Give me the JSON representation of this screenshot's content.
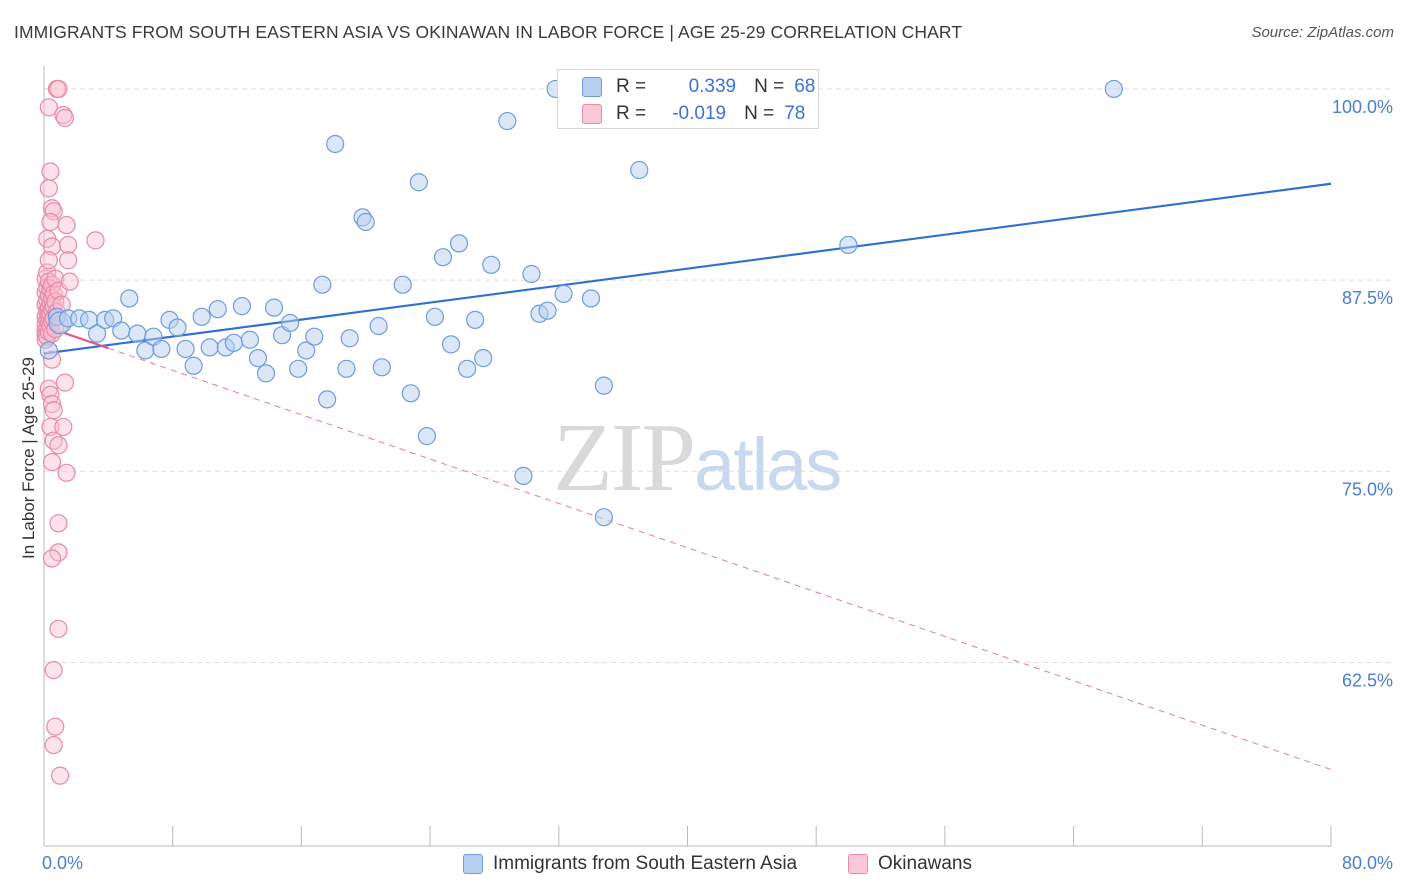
{
  "title": "IMMIGRANTS FROM SOUTH EASTERN ASIA VS OKINAWAN IN LABOR FORCE | AGE 25-29 CORRELATION CHART",
  "source": "Source: ZipAtlas.com",
  "watermark": {
    "zip": "ZIP",
    "atlas": "atlas"
  },
  "legend": {
    "rows": [
      {
        "r_label": "R =",
        "r_value": "0.339",
        "n_label": "N =",
        "n_value": "68"
      },
      {
        "r_label": "R =",
        "r_value": "-0.019",
        "n_label": "N =",
        "n_value": "78"
      }
    ]
  },
  "bottom_legend": {
    "series1": "Immigrants from South Eastern Asia",
    "series2": "Okinawans"
  },
  "colors": {
    "blue_fill": "#b8d0f0",
    "blue_stroke": "#6f9be0",
    "blue_line": "#2f6fd0",
    "pink_fill": "#f8c0d0",
    "pink_stroke": "#e88aa8",
    "pink_line": "#e05a88",
    "accent_text": "#3b73d6"
  },
  "chart_data": {
    "type": "scatter",
    "title": "IMMIGRANTS FROM SOUTH EASTERN ASIA VS OKINAWAN IN LABOR FORCE | AGE 25-29 CORRELATION CHART",
    "xlabel": "",
    "ylabel": "In Labor Force | Age 25-29",
    "xlim": [
      0,
      80
    ],
    "ylim": [
      50.5,
      101.5
    ],
    "x_tick_labels": [
      "0.0%",
      "80.0%"
    ],
    "y_ticks": [
      100,
      87.5,
      75,
      62.5
    ],
    "y_tick_labels": [
      "100.0%",
      "87.5%",
      "75.0%",
      "62.5%"
    ],
    "grid": true,
    "legend_position": "top-center",
    "series": [
      {
        "name": "Immigrants from South Eastern Asia",
        "color": "#6f9be0",
        "r": 0.339,
        "n": 68,
        "trend": {
          "x": [
            0,
            80
          ],
          "y": [
            82.7,
            93.8
          ],
          "style": "solid"
        },
        "points": [
          [
            0.3,
            82.9
          ],
          [
            0.8,
            85.1
          ],
          [
            1.0,
            84.7
          ],
          [
            1.5,
            85.0
          ],
          [
            2.2,
            85.0
          ],
          [
            2.8,
            84.9
          ],
          [
            3.3,
            84.0
          ],
          [
            3.8,
            84.9
          ],
          [
            4.3,
            85.0
          ],
          [
            4.8,
            84.2
          ],
          [
            5.3,
            86.3
          ],
          [
            5.8,
            84.0
          ],
          [
            6.3,
            82.9
          ],
          [
            6.8,
            83.8
          ],
          [
            7.3,
            83.0
          ],
          [
            7.8,
            84.9
          ],
          [
            8.3,
            84.4
          ],
          [
            8.8,
            83.0
          ],
          [
            9.3,
            81.9
          ],
          [
            9.8,
            85.1
          ],
          [
            10.3,
            83.1
          ],
          [
            10.8,
            85.6
          ],
          [
            11.3,
            83.1
          ],
          [
            11.8,
            83.4
          ],
          [
            12.3,
            85.8
          ],
          [
            12.8,
            83.6
          ],
          [
            13.3,
            82.4
          ],
          [
            13.8,
            81.4
          ],
          [
            14.3,
            85.7
          ],
          [
            14.8,
            83.9
          ],
          [
            15.3,
            84.7
          ],
          [
            15.8,
            81.7
          ],
          [
            16.3,
            82.9
          ],
          [
            16.8,
            83.8
          ],
          [
            17.3,
            87.2
          ],
          [
            17.6,
            79.7
          ],
          [
            18.1,
            96.4
          ],
          [
            18.8,
            81.7
          ],
          [
            19.0,
            83.7
          ],
          [
            19.8,
            91.6
          ],
          [
            20.0,
            91.3
          ],
          [
            20.8,
            84.5
          ],
          [
            21.0,
            81.8
          ],
          [
            22.3,
            87.2
          ],
          [
            22.8,
            80.1
          ],
          [
            23.3,
            93.9
          ],
          [
            23.8,
            77.3
          ],
          [
            24.3,
            85.1
          ],
          [
            24.8,
            89.0
          ],
          [
            25.3,
            83.3
          ],
          [
            25.8,
            89.9
          ],
          [
            26.3,
            81.7
          ],
          [
            26.8,
            84.9
          ],
          [
            27.3,
            82.4
          ],
          [
            27.8,
            88.5
          ],
          [
            28.8,
            97.9
          ],
          [
            29.8,
            74.7
          ],
          [
            30.3,
            87.9
          ],
          [
            30.8,
            85.3
          ],
          [
            31.3,
            85.5
          ],
          [
            31.8,
            100.0
          ],
          [
            32.3,
            86.6
          ],
          [
            34.0,
            86.3
          ],
          [
            34.8,
            72.0
          ],
          [
            34.8,
            80.6
          ],
          [
            37.0,
            94.7
          ],
          [
            50.0,
            89.8
          ],
          [
            66.5,
            100.0
          ]
        ]
      },
      {
        "name": "Okinawans",
        "color": "#e88aa8",
        "r": -0.019,
        "n": 78,
        "trend": {
          "x": [
            0,
            80
          ],
          "y": [
            84.5,
            55.5
          ],
          "style": "dashed",
          "solid_until_x": 4.0
        },
        "points": [
          [
            0.1,
            87.6
          ],
          [
            0.1,
            86.7
          ],
          [
            0.1,
            85.9
          ],
          [
            0.1,
            85.1
          ],
          [
            0.1,
            84.6
          ],
          [
            0.1,
            84.2
          ],
          [
            0.1,
            83.9
          ],
          [
            0.1,
            83.6
          ],
          [
            0.2,
            88.0
          ],
          [
            0.2,
            87.0
          ],
          [
            0.2,
            86.2
          ],
          [
            0.2,
            85.5
          ],
          [
            0.2,
            84.9
          ],
          [
            0.2,
            84.4
          ],
          [
            0.2,
            83.8
          ],
          [
            0.3,
            87.4
          ],
          [
            0.3,
            86.5
          ],
          [
            0.3,
            85.7
          ],
          [
            0.3,
            85.2
          ],
          [
            0.3,
            84.7
          ],
          [
            0.3,
            84.1
          ],
          [
            0.4,
            86.9
          ],
          [
            0.4,
            86.0
          ],
          [
            0.4,
            85.3
          ],
          [
            0.4,
            84.5
          ],
          [
            0.5,
            87.2
          ],
          [
            0.5,
            86.3
          ],
          [
            0.5,
            85.6
          ],
          [
            0.5,
            84.8
          ],
          [
            0.5,
            84.0
          ],
          [
            0.6,
            86.6
          ],
          [
            0.6,
            85.8
          ],
          [
            0.6,
            85.0
          ],
          [
            0.7,
            87.6
          ],
          [
            0.7,
            86.1
          ],
          [
            0.7,
            84.3
          ],
          [
            0.8,
            85.4
          ],
          [
            0.9,
            86.8
          ],
          [
            1.0,
            84.6
          ],
          [
            1.1,
            85.9
          ],
          [
            0.3,
            98.8
          ],
          [
            0.4,
            94.6
          ],
          [
            0.3,
            93.5
          ],
          [
            0.5,
            92.2
          ],
          [
            0.6,
            92.0
          ],
          [
            0.4,
            91.3
          ],
          [
            0.2,
            90.2
          ],
          [
            0.5,
            89.7
          ],
          [
            0.3,
            88.8
          ],
          [
            0.8,
            100.0
          ],
          [
            0.9,
            100.0
          ],
          [
            1.2,
            98.3
          ],
          [
            1.3,
            98.1
          ],
          [
            1.4,
            91.1
          ],
          [
            1.5,
            89.8
          ],
          [
            3.2,
            90.1
          ],
          [
            1.5,
            88.8
          ],
          [
            1.6,
            87.4
          ],
          [
            0.5,
            82.3
          ],
          [
            1.3,
            80.8
          ],
          [
            0.3,
            80.4
          ],
          [
            0.4,
            80.0
          ],
          [
            0.5,
            79.4
          ],
          [
            0.6,
            79.0
          ],
          [
            0.4,
            77.9
          ],
          [
            1.2,
            77.9
          ],
          [
            0.6,
            77.0
          ],
          [
            0.9,
            76.7
          ],
          [
            0.5,
            75.6
          ],
          [
            1.4,
            74.9
          ],
          [
            0.9,
            71.6
          ],
          [
            0.9,
            69.7
          ],
          [
            0.5,
            69.3
          ],
          [
            0.9,
            64.7
          ],
          [
            0.6,
            62.0
          ],
          [
            0.7,
            58.3
          ],
          [
            0.6,
            57.1
          ],
          [
            1.0,
            55.1
          ]
        ]
      }
    ]
  }
}
